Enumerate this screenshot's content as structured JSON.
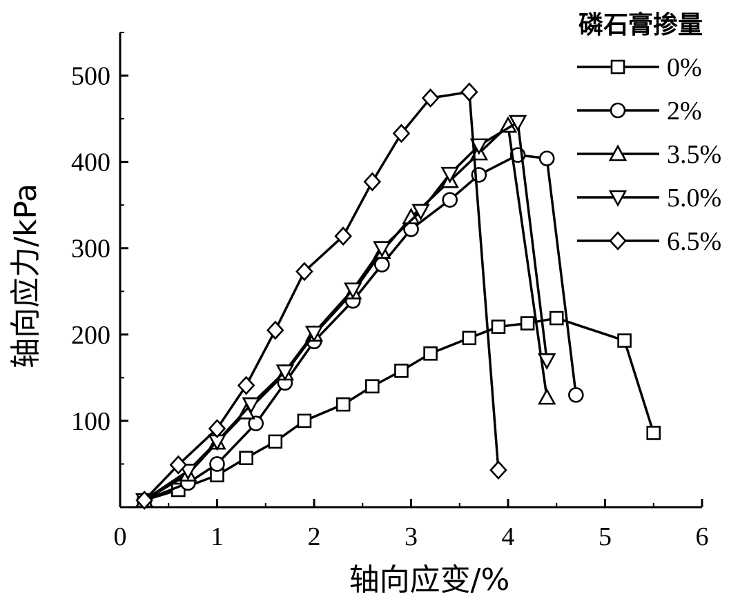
{
  "chart_data": {
    "type": "line",
    "xlabel": "轴向应变/%",
    "ylabel": "轴向应力/kPa",
    "xlim": [
      0,
      6
    ],
    "ylim": [
      0,
      550
    ],
    "xticks": [
      0,
      1,
      2,
      3,
      4,
      5,
      6
    ],
    "yticks": [
      100,
      200,
      300,
      400,
      500
    ],
    "grid": false,
    "legend": {
      "title": "磷石膏掺量",
      "position": "top-right"
    },
    "series": [
      {
        "name": "0%",
        "marker": "square",
        "x": [
          0.25,
          0.6,
          1.0,
          1.3,
          1.6,
          1.9,
          2.3,
          2.6,
          2.9,
          3.2,
          3.6,
          3.9,
          4.2,
          4.5,
          5.2,
          5.5
        ],
        "y": [
          8,
          20,
          37,
          57,
          76,
          100,
          119,
          140,
          158,
          178,
          196,
          209,
          213,
          219,
          193,
          86
        ]
      },
      {
        "name": "2%",
        "marker": "circle",
        "x": [
          0.25,
          0.7,
          1.0,
          1.4,
          1.7,
          2.0,
          2.4,
          2.7,
          3.0,
          3.4,
          3.7,
          4.1,
          4.4,
          4.7
        ],
        "y": [
          8,
          28,
          50,
          97,
          144,
          192,
          239,
          281,
          322,
          356,
          385,
          408,
          404,
          130
        ]
      },
      {
        "name": "3.5%",
        "marker": "triangle-up",
        "x": [
          0.25,
          0.7,
          1.0,
          1.3,
          1.7,
          2.0,
          2.4,
          2.7,
          3.0,
          3.4,
          3.7,
          4.0,
          4.4
        ],
        "y": [
          8,
          38,
          75,
          110,
          155,
          200,
          249,
          296,
          336,
          378,
          410,
          442,
          127
        ]
      },
      {
        "name": "5.0%",
        "marker": "triangle-down",
        "x": [
          0.25,
          0.7,
          1.0,
          1.35,
          1.7,
          2.0,
          2.4,
          2.7,
          3.1,
          3.4,
          3.7,
          4.1,
          4.4
        ],
        "y": [
          8,
          42,
          76,
          119,
          157,
          202,
          252,
          300,
          343,
          386,
          419,
          446,
          170
        ]
      },
      {
        "name": "6.5%",
        "marker": "diamond",
        "x": [
          0.25,
          0.6,
          1.0,
          1.3,
          1.6,
          1.9,
          2.3,
          2.6,
          2.9,
          3.2,
          3.6,
          3.9
        ],
        "y": [
          8,
          49,
          91,
          141,
          205,
          273,
          314,
          377,
          433,
          474,
          481,
          43
        ]
      }
    ]
  }
}
